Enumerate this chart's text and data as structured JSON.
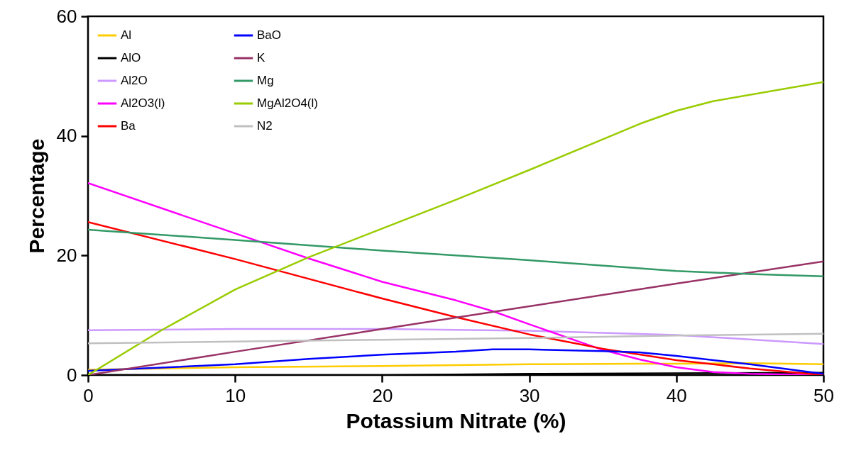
{
  "chart_data": {
    "type": "line",
    "xlabel": "Potassium Nitrate (%)",
    "ylabel": "Percentage",
    "xlim": [
      0,
      50
    ],
    "xticks": [
      0,
      10,
      20,
      30,
      40,
      50
    ],
    "ylim": [
      0,
      60
    ],
    "yticks": [
      0,
      20,
      40,
      60
    ],
    "grid": false,
    "legend": "top left",
    "line_style": "solid",
    "marker": "none",
    "series": [
      {
        "name": "Al",
        "color": "#ffcc00",
        "x": [
          0,
          10,
          20,
          30,
          37.5,
          40,
          45,
          50
        ],
        "values": [
          0.9,
          1.3,
          1.5,
          1.8,
          1.9,
          1.9,
          2.0,
          1.8
        ]
      },
      {
        "name": "AlO",
        "color": "#000000",
        "x": [
          0,
          10,
          20,
          25,
          30,
          40,
          50
        ],
        "values": [
          0,
          0,
          0,
          0.1,
          0.2,
          0.3,
          0.4
        ]
      },
      {
        "name": "Al2O",
        "color": "#cc99ff",
        "x": [
          0,
          10,
          20,
          30,
          40,
          50
        ],
        "values": [
          7.5,
          7.7,
          7.7,
          7.4,
          6.7,
          5.2
        ]
      },
      {
        "name": "Al2O3(l)",
        "color": "#ff00ff",
        "x": [
          0,
          10,
          15,
          20,
          25,
          27.5,
          30,
          35,
          37.5,
          40,
          42.5,
          45,
          50
        ],
        "values": [
          32.1,
          23.7,
          19.5,
          15.6,
          12.5,
          10.7,
          8.5,
          4.2,
          2.6,
          1.3,
          0.5,
          0.2,
          0
        ]
      },
      {
        "name": "Ba",
        "color": "#ff0000",
        "x": [
          0,
          10,
          20,
          25,
          30,
          35,
          40,
          45,
          50
        ],
        "values": [
          25.6,
          19.4,
          12.8,
          9.7,
          6.8,
          4.4,
          2.5,
          1.1,
          0
        ]
      },
      {
        "name": "BaO",
        "color": "#0000ff",
        "x": [
          0,
          10,
          15,
          20,
          25,
          27.5,
          30,
          35,
          37.5,
          40,
          45,
          50
        ],
        "values": [
          0.7,
          1.8,
          2.7,
          3.4,
          3.9,
          4.3,
          4.3,
          4.0,
          3.8,
          3.2,
          1.8,
          0.2
        ]
      },
      {
        "name": "K",
        "color": "#993366",
        "x": [
          0,
          10,
          20,
          30,
          40,
          50
        ],
        "values": [
          0,
          3.9,
          7.7,
          11.5,
          15.3,
          19.0
        ]
      },
      {
        "name": "Mg",
        "color": "#339966",
        "x": [
          0,
          10,
          20,
          30,
          40,
          45,
          50
        ],
        "values": [
          24.3,
          22.6,
          20.8,
          19.2,
          17.4,
          16.9,
          16.5
        ]
      },
      {
        "name": "MgAl2O4(l)",
        "color": "#99cc00",
        "x": [
          0,
          5,
          10,
          15,
          20,
          25,
          30,
          37.5,
          40,
          42.5,
          50
        ],
        "values": [
          0,
          7.5,
          14.3,
          19.7,
          24.5,
          29.3,
          34.3,
          42,
          44.2,
          45.8,
          49
        ]
      },
      {
        "name": "N2",
        "color": "#c0c0c0",
        "x": [
          0,
          10,
          20,
          30,
          40,
          50
        ],
        "values": [
          5.3,
          5.6,
          5.9,
          6.2,
          6.6,
          6.9
        ]
      }
    ]
  }
}
